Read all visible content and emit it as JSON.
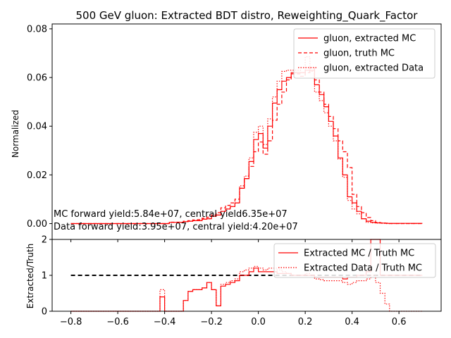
{
  "chart_data": [
    {
      "type": "line",
      "title": "500 GeV gluon: Extracted BDT distro, Reweighting_Quark_Factor",
      "xlabel": "",
      "ylabel": "Normalized",
      "xlim": [
        -0.88,
        0.78
      ],
      "ylim": [
        -0.0065,
        0.082
      ],
      "grid": false,
      "legend_position": "top-right",
      "yticks": [
        "0.00",
        "0.02",
        "0.04",
        "0.06",
        "0.08"
      ],
      "yticks_values": [
        0,
        0.02,
        0.04,
        0.06,
        0.08
      ],
      "annotations": [
        "MC forward yield:5.84e+07, central yield6.35e+07",
        "Data forward yield:3.95e+07, central yield:4.20e+07"
      ],
      "bin_edges_start": -0.8,
      "bin_width": 0.02,
      "series": [
        {
          "name": "gluon, extracted MC",
          "color": "#ff0000",
          "style": "solid",
          "values": [
            0,
            0,
            0,
            0,
            0,
            0,
            0,
            0,
            0,
            0,
            0,
            0,
            0,
            0,
            0,
            0,
            0,
            0,
            0,
            0,
            0,
            0.0005,
            0.0005,
            0.0005,
            0.0008,
            0.001,
            0.0012,
            0.0012,
            0.0018,
            0.002,
            0.003,
            0.0035,
            0.005,
            0.006,
            0.007,
            0.0085,
            0.0145,
            0.0185,
            0.0255,
            0.0345,
            0.037,
            0.031,
            0.04,
            0.0495,
            0.055,
            0.0585,
            0.06,
            0.062,
            0.062,
            0.062,
            0.063,
            0.063,
            0.057,
            0.053,
            0.048,
            0.042,
            0.036,
            0.027,
            0.02,
            0.011,
            0.0085,
            0.005,
            0.002,
            0.001,
            0.0005,
            0.0003,
            0.0002,
            0.0001,
            0.0001,
            0.0001,
            0.0001,
            0.0001,
            0.0001,
            0.0001,
            0.0001
          ]
        },
        {
          "name": "gluon, truth MC",
          "color": "#ff0000",
          "style": "dashed",
          "values": [
            0,
            0,
            0,
            0,
            0,
            0,
            0,
            0,
            0,
            0,
            0,
            0,
            0,
            0,
            0,
            0,
            0,
            0,
            0,
            0,
            0,
            0.0006,
            0.0006,
            0.0006,
            0.001,
            0.0012,
            0.0015,
            0.0016,
            0.0022,
            0.0026,
            0.0035,
            0.0045,
            0.0065,
            0.0075,
            0.0085,
            0.01,
            0.0145,
            0.0185,
            0.0235,
            0.0295,
            0.0335,
            0.0285,
            0.034,
            0.0425,
            0.049,
            0.054,
            0.059,
            0.0615,
            0.0615,
            0.0605,
            0.062,
            0.064,
            0.059,
            0.054,
            0.049,
            0.044,
            0.039,
            0.034,
            0.0295,
            0.023,
            0.012,
            0.007,
            0.0045,
            0.0025,
            0.0012,
            0.0005,
            0.0003,
            0.0002,
            0,
            0,
            0,
            0,
            0,
            0,
            0
          ]
        },
        {
          "name": "gluon, extracted Data",
          "color": "#ff0000",
          "style": "dotted",
          "values": [
            0,
            0,
            0,
            0,
            0,
            0,
            0,
            0,
            0,
            0,
            0,
            0,
            0,
            0,
            0,
            0,
            0,
            0,
            0,
            0,
            0,
            0.0005,
            0.0005,
            0.0005,
            0.0008,
            0.001,
            0.0012,
            0.0012,
            0.0018,
            0.002,
            0.003,
            0.0035,
            0.005,
            0.006,
            0.007,
            0.0085,
            0.0155,
            0.0195,
            0.027,
            0.0375,
            0.04,
            0.0325,
            0.043,
            0.052,
            0.0585,
            0.0625,
            0.063,
            0.063,
            0.063,
            0.062,
            0.0685,
            0.0625,
            0.054,
            0.0505,
            0.0455,
            0.04,
            0.034,
            0.0265,
            0.019,
            0.0095,
            0.006,
            0.004,
            0.002,
            0.0005,
            0.0003,
            0.0002,
            0.0001,
            0,
            0,
            0,
            0,
            0,
            0,
            0,
            0
          ]
        }
      ]
    },
    {
      "type": "line",
      "title": "",
      "xlabel": "",
      "ylabel": "Extracted/Truth",
      "xlim": [
        -0.88,
        0.78
      ],
      "ylim": [
        0,
        2
      ],
      "grid": false,
      "legend_position": "top-right",
      "xticks": [
        "−0.8",
        "−0.6",
        "−0.4",
        "−0.2",
        "0.0",
        "0.2",
        "0.4",
        "0.6"
      ],
      "xticks_values": [
        -0.8,
        -0.6,
        -0.4,
        -0.2,
        0.0,
        0.2,
        0.4,
        0.6
      ],
      "yticks": [
        "0",
        "1",
        "2"
      ],
      "yticks_values": [
        0,
        1,
        2
      ],
      "reference_line": 1,
      "bin_edges_start": -0.8,
      "bin_width": 0.02,
      "series": [
        {
          "name": "Extracted MC / Truth MC",
          "color": "#ff0000",
          "style": "solid",
          "values": [
            0,
            0,
            0,
            0,
            0,
            0,
            0,
            0,
            0,
            0,
            0,
            0,
            0,
            0,
            0,
            0,
            0,
            0,
            0,
            0.4,
            0,
            0,
            0,
            0,
            0.3,
            0.55,
            0.6,
            0.6,
            0.65,
            0.8,
            0.6,
            0.15,
            0.7,
            0.75,
            0.8,
            0.85,
            1.0,
            1.0,
            1.1,
            1.2,
            1.1,
            1.1,
            1.1,
            1.1,
            1.05,
            1.05,
            1.05,
            1.0,
            1.0,
            1.0,
            1.0,
            1.0,
            0.95,
            0.95,
            0.95,
            0.95,
            0.95,
            0.95,
            0.9,
            0.95,
            0.95,
            1.0,
            1.0,
            1.1,
            2.2,
            2.2,
            1.0,
            1.0,
            1.0,
            1.0,
            1.0,
            1.0,
            1.0,
            1.0,
            1.0
          ]
        },
        {
          "name": "Extracted Data / Truth MC",
          "color": "#ff0000",
          "style": "dotted",
          "values": [
            0,
            0,
            0,
            0,
            0,
            0,
            0,
            0,
            0,
            0,
            0,
            0,
            0,
            0,
            0,
            0,
            0,
            0,
            0,
            0.6,
            0,
            0,
            0,
            0,
            0.3,
            0.55,
            0.6,
            0.6,
            0.65,
            0.8,
            0.6,
            0.15,
            0.75,
            0.8,
            0.85,
            0.9,
            1.1,
            1.15,
            1.2,
            1.25,
            1.2,
            1.15,
            1.2,
            1.2,
            1.15,
            1.1,
            1.05,
            1.0,
            1.0,
            1.0,
            1.05,
            1.0,
            0.9,
            0.88,
            0.85,
            0.85,
            0.85,
            0.85,
            0.8,
            0.75,
            0.8,
            0.85,
            0.85,
            0.9,
            1.0,
            0.8,
            0.5,
            0.2,
            0,
            0,
            0,
            0,
            0,
            0,
            0
          ]
        }
      ]
    }
  ]
}
